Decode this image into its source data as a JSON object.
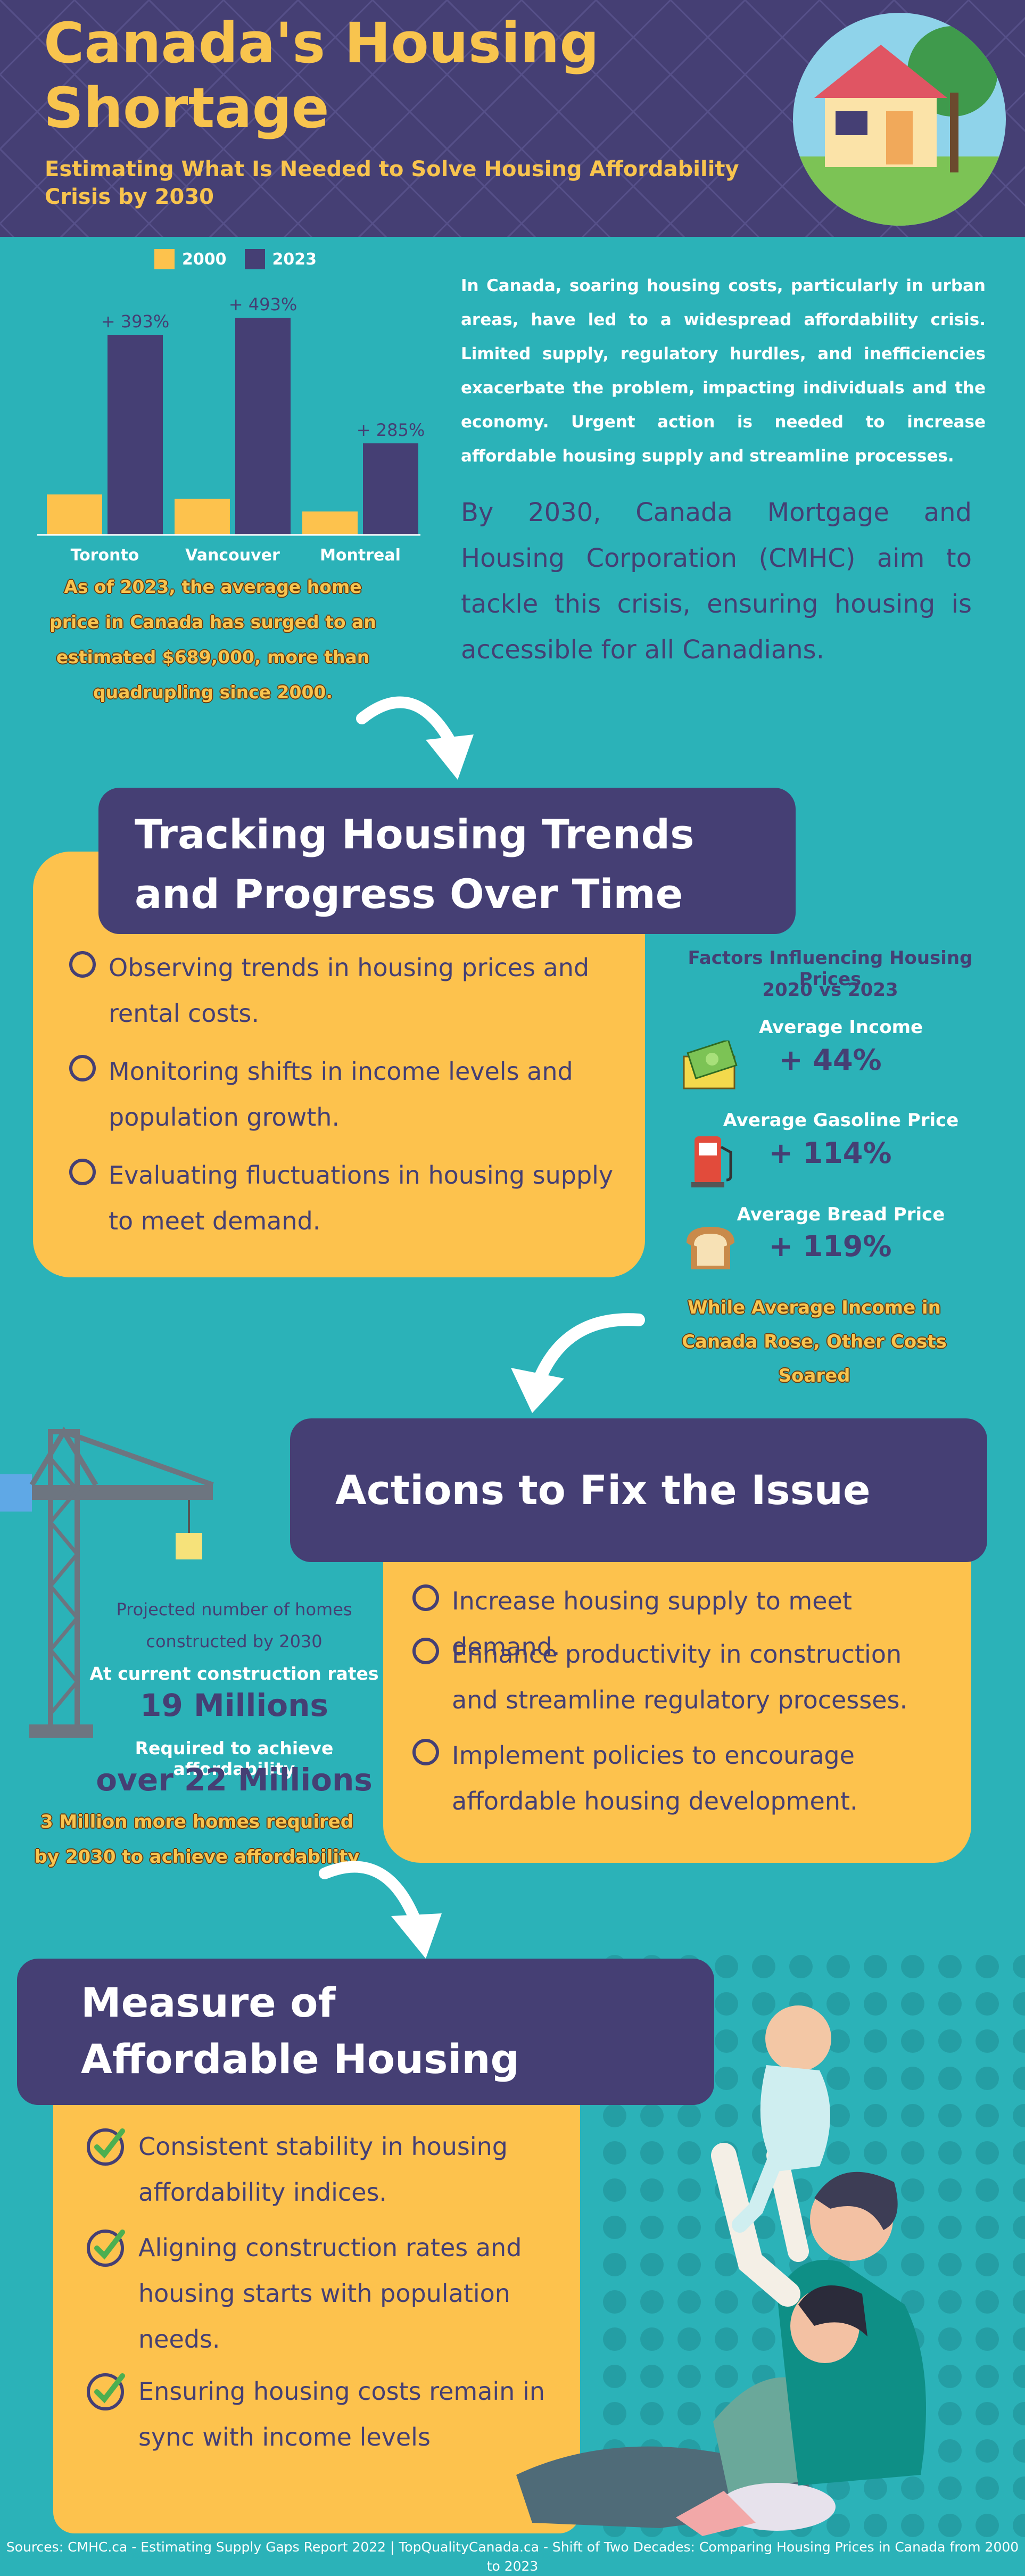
{
  "header": {
    "title_line1": "Canada's Housing",
    "title_line2": "Shortage",
    "subtitle": "Estimating What Is Needed to Solve Housing Affordability Crisis by 2030"
  },
  "intro": {
    "paragraph1": "In Canada, soaring housing costs, particularly in urban areas, have led to a widespread affordability crisis. Limited supply, regulatory hurdles, and inefficiencies exacerbate the problem, impacting individuals and the economy. Urgent action is needed to increase affordable housing supply and streamline processes.",
    "paragraph2": "By 2030, Canada Mortgage and Housing Corporation (CMHC) aim to tackle this crisis, ensuring housing is accessible for all Canadians."
  },
  "chart_data": {
    "type": "bar",
    "categories": [
      "Toronto",
      "Vancouver",
      "Montreal"
    ],
    "series": [
      {
        "name": "2000",
        "values": [
          19,
          17,
          11
        ],
        "color": "#fdc24d"
      },
      {
        "name": "2023",
        "values": [
          94,
          102,
          43
        ],
        "color": "#453f74"
      }
    ],
    "data_labels": [
      "+ 393%",
      "+ 493%",
      "+ 285%"
    ],
    "legend": [
      "2000",
      "2023"
    ],
    "legend_position": "top",
    "ylim": [
      0,
      110
    ],
    "grid": false,
    "note": "As of 2023, the average home price in Canada has surged to an estimated $689,000, more than quadrupling since 2000."
  },
  "tracking": {
    "heading": "Tracking Housing Trends and Progress Over Time",
    "bullets": [
      "Observing trends in housing prices and rental costs.",
      "Monitoring shifts in income levels and population growth.",
      "Evaluating fluctuations in housing supply to meet demand."
    ]
  },
  "factors": {
    "title": "Factors Influencing Housing Prices",
    "period": "2020 vs 2023",
    "items": [
      {
        "label": "Average Income",
        "value": "+ 44%",
        "icon": "money-icon"
      },
      {
        "label": "Average Gasoline Price",
        "value": "+ 114%",
        "icon": "gas-pump-icon"
      },
      {
        "label": "Average Bread Price",
        "value": "+ 119%",
        "icon": "bread-icon"
      }
    ],
    "note": "While Average Income in Canada Rose, Other Costs Soared"
  },
  "actions": {
    "heading": "Actions to Fix the Issue",
    "bullets": [
      "Increase housing supply to meet demand.",
      "Enhance productivity in construction and streamline regulatory processes.",
      "Implement policies to encourage affordable housing development."
    ]
  },
  "projection": {
    "line1": "Projected number of homes",
    "line2": "constructed by 2030",
    "current_label": "At current construction rates",
    "current_value": "19 Millions",
    "required_label": "Required to achieve affordability",
    "required_value": "over 22 Millions",
    "note": "3 Million more homes required by 2030 to achieve affordability"
  },
  "measure": {
    "heading": "Measure of Affordable Housing",
    "bullets": [
      "Consistent stability in housing affordability indices.",
      "Aligning construction rates and housing starts with population needs.",
      "Ensuring housing costs remain in sync with income levels"
    ]
  },
  "footer": {
    "sources": "Sources:  CMHC.ca - Estimating Supply Gaps Report 2022  |  TopQualityCanada.ca - Shift of Two Decades: Comparing Housing Prices in Canada from 2000 to 2023"
  },
  "colors": {
    "background": "#2bb2b8",
    "navy": "#453f74",
    "yellow": "#fdc24d",
    "title_yellow": "#f8c44e"
  }
}
